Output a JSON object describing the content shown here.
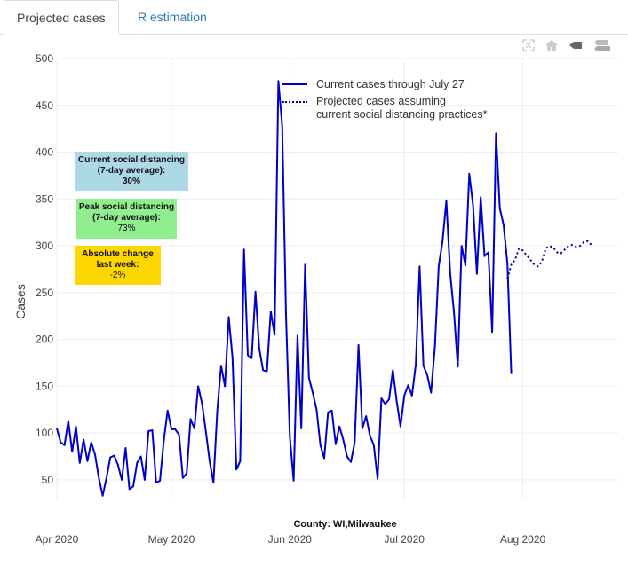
{
  "tabs": {
    "projected": "Projected cases",
    "r_estimation": "R estimation"
  },
  "modebar": {
    "icons": [
      "autoscale-icon",
      "home-icon",
      "spike-lines-icon",
      "compare-hover-icon"
    ]
  },
  "annotations": {
    "current": {
      "line1": "Current social distancing",
      "line2": "(7-day average):",
      "value": "30%",
      "color": "#add8e6"
    },
    "peak": {
      "line1": "Peak social distancing",
      "line2": "(7-day average):",
      "value": "73%",
      "color": "#90ee90"
    },
    "change": {
      "line1": "Absolute change",
      "line2": "last week:",
      "value": "-2%",
      "color": "#ffd700"
    }
  },
  "county_label": "County: WI,Milwaukee",
  "colors": {
    "current": "#0000cc",
    "projected": "#00008b",
    "grid": "#eeeeee"
  },
  "chart_data": {
    "type": "line",
    "ylabel": "Cases",
    "xlabel": "",
    "ylim": [
      30,
      500
    ],
    "yticks": [
      50,
      100,
      150,
      200,
      250,
      300,
      350,
      400,
      450,
      500
    ],
    "xlim_day": [
      0,
      147
    ],
    "xticks": [
      {
        "label": "Apr 2020",
        "day": 0
      },
      {
        "label": "May 2020",
        "day": 30
      },
      {
        "label": "Jun 2020",
        "day": 61
      },
      {
        "label": "Jul 2020",
        "day": 91
      },
      {
        "label": "Aug 2020",
        "day": 122
      }
    ],
    "series": [
      {
        "name": "Current cases through July 27",
        "style": "solid",
        "start_day": 0,
        "values": [
          105,
          90,
          87,
          113,
          80,
          107,
          68,
          93,
          70,
          90,
          77,
          52,
          33,
          52,
          74,
          76,
          66,
          50,
          84,
          40,
          43,
          68,
          75,
          50,
          102,
          103,
          47,
          49,
          92,
          124,
          104,
          104,
          98,
          52,
          57,
          115,
          105,
          150,
          132,
          102,
          70,
          47,
          124,
          172,
          150,
          224,
          180,
          61,
          70,
          296,
          183,
          180,
          251,
          190,
          167,
          166,
          230,
          205,
          476,
          428,
          226,
          96,
          49,
          204,
          105,
          280,
          159,
          143,
          125,
          87,
          73,
          122,
          124,
          88,
          107,
          93,
          75,
          69,
          90,
          194,
          105,
          118,
          97,
          87,
          51,
          137,
          131,
          136,
          167,
          134,
          107,
          140,
          151,
          140,
          173,
          278,
          172,
          162,
          143,
          192,
          278,
          305,
          348,
          271,
          229,
          171,
          300,
          279,
          377,
          343,
          270,
          352,
          289,
          293,
          208,
          420,
          340,
          322,
          280,
          163
        ],
        "legend": "Current cases through July 27"
      },
      {
        "name": "Projected cases assuming current social distancing practices*",
        "style": "dotted",
        "start_day": 118,
        "values": [
          265,
          280,
          285,
          297,
          295,
          290,
          285,
          280,
          278,
          283,
          297,
          300,
          298,
          293,
          292,
          296,
          300,
          301,
          299,
          300,
          304,
          305,
          301
        ],
        "legend_line1": "Projected cases assuming",
        "legend_line2": "current social distancing practices*"
      }
    ]
  }
}
